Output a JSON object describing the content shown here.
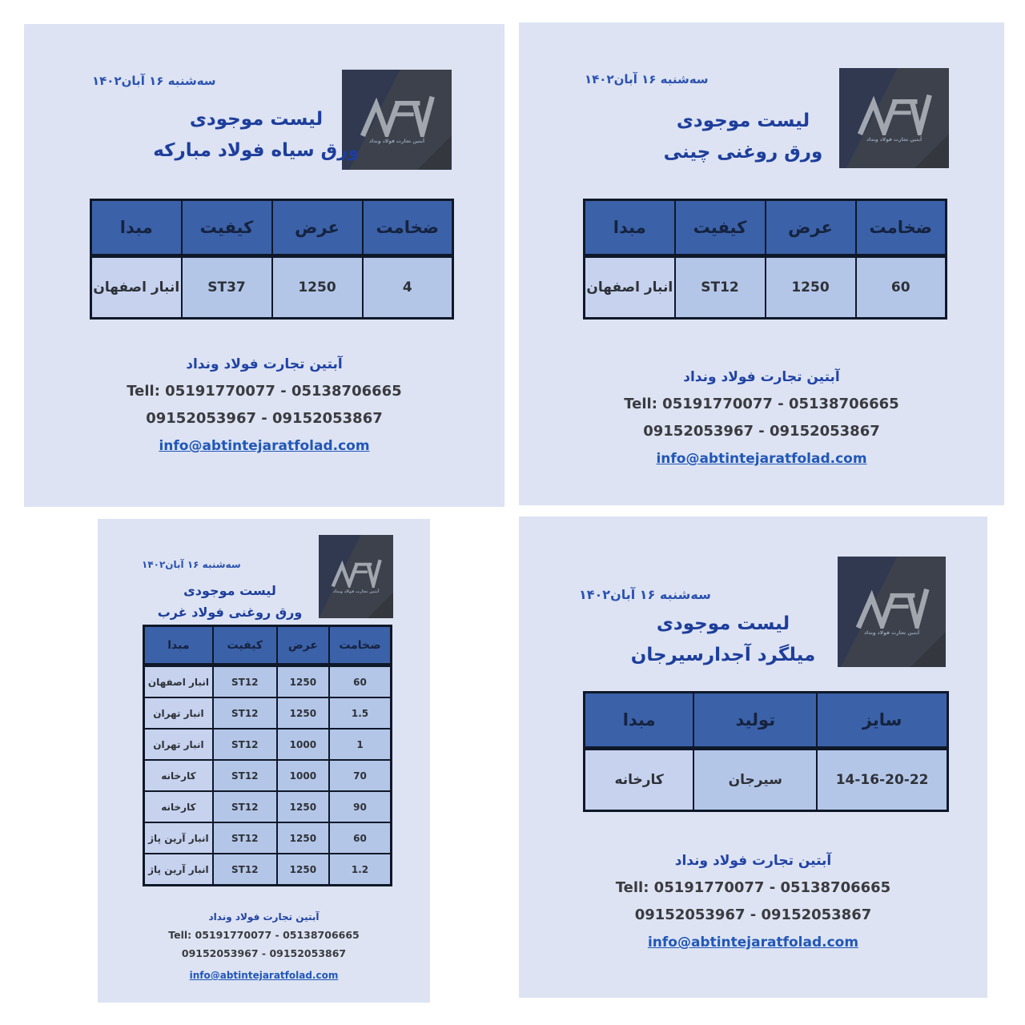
{
  "colors": {
    "page_background": "#ffffff",
    "panel_background": "#dde3f2",
    "table_header_blue": "#3b61a8",
    "table_cell_blue": "#b4c6e8",
    "table_border_navy": "#0e1829",
    "title_navy": "#1d3e9c",
    "date_blue": "#2b52b0",
    "phone_dark": "#3a3b40",
    "email_link_blue": "#2157b8",
    "logo_square_dark": "#3d414b"
  },
  "panels": [
    {
      "id": "varagh-siah-mobarakeh",
      "date": "سه‌شنبه ۱۶ آبان۱۴۰۲",
      "title": "لیست موجودی",
      "subtitle": "ورق سیاه فولاد مبارکه",
      "logo": {
        "caption": "آبتین تجارت فولاد ونداد"
      },
      "table": {
        "headers": [
          "ضخامت",
          "عرض",
          "کیفیت",
          "مبدا"
        ],
        "rows": [
          [
            "4",
            "1250",
            "ST37",
            "انبار اصفهان"
          ]
        ]
      },
      "contact": {
        "company": "آبتین تجارت فولاد ونداد",
        "tell": "Tell: 05191770077 - 05138706665",
        "mobile": "09152053967 - 09152053867",
        "email": "info@abtintejaratfolad.com"
      }
    },
    {
      "id": "varagh-roghani-chini",
      "date": "سه‌شنبه ۱۶ آبان۱۴۰۲",
      "title": "لیست موجودی",
      "subtitle": "ورق روغنی چینی",
      "logo": {
        "caption": "آبتین تجارت فولاد ونداد"
      },
      "table": {
        "headers": [
          "ضخامت",
          "عرض",
          "کیفیت",
          "مبدا"
        ],
        "rows": [
          [
            "60",
            "1250",
            "ST12",
            "انبار اصفهان"
          ]
        ]
      },
      "contact": {
        "company": "آبتین تجارت فولاد ونداد",
        "tell": "Tell: 05191770077 - 05138706665",
        "mobile": "09152053967 - 09152053867",
        "email": "info@abtintejaratfolad.com"
      }
    },
    {
      "id": "varagh-roghani-foolad-gharb",
      "date": "سه‌شنبه ۱۶ آبان۱۴۰۲",
      "title": "لیست موجودی",
      "subtitle": "ورق روغنی فولاد غرب",
      "logo": {
        "caption": "آبتین تجارت فولاد ونداد"
      },
      "table": {
        "headers": [
          "ضخامت",
          "عرض",
          "کیفیت",
          "مبدا"
        ],
        "rows": [
          [
            "60",
            "1250",
            "ST12",
            "انبار اصفهان"
          ],
          [
            "1.5",
            "1250",
            "ST12",
            "انبار تهران"
          ],
          [
            "1",
            "1000",
            "ST12",
            "انبار تهران"
          ],
          [
            "70",
            "1000",
            "ST12",
            "کارخانه"
          ],
          [
            "90",
            "1250",
            "ST12",
            "کارخانه"
          ],
          [
            "60",
            "1250",
            "ST12",
            "انبار آرین پاژ"
          ],
          [
            "1.2",
            "1250",
            "ST12",
            "انبار آرین پاژ"
          ]
        ]
      },
      "contact": {
        "company": "آبتین تجارت فولاد ونداد",
        "tell": "Tell: 05191770077 - 05138706665",
        "mobile": "09152053967 - 09152053867",
        "email": "info@abtintejaratfolad.com"
      }
    },
    {
      "id": "milgard-ajdar-sirjan",
      "date": "سه‌شنبه ۱۶ آبان۱۴۰۲",
      "title": "لیست موجودی",
      "subtitle": "میلگرد آجدارسیرجان",
      "logo": {
        "caption": "آبتین تجارت فولاد ونداد"
      },
      "table": {
        "headers": [
          "سایز",
          "تولید",
          "مبدا"
        ],
        "rows": [
          [
            "14-16-20-22",
            "سیرجان",
            "کارخانه"
          ]
        ]
      },
      "contact": {
        "company": "آبتین تجارت فولاد ونداد",
        "tell": "Tell: 05191770077 - 05138706665",
        "mobile": "09152053967 - 09152053867",
        "email": "info@abtintejaratfolad.com"
      }
    }
  ]
}
